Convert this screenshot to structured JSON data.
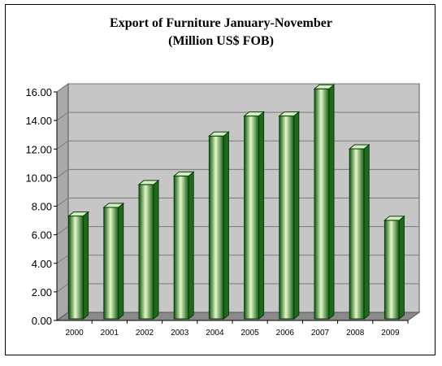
{
  "chart_data": {
    "type": "bar",
    "title": "Export of Furniture January-November",
    "subtitle": "(Million US$ FOB)",
    "categories": [
      "2000",
      "2001",
      "2002",
      "2003",
      "2004",
      "2005",
      "2006",
      "2007",
      "2008",
      "2009"
    ],
    "values": [
      7.0,
      7.6,
      9.2,
      9.8,
      12.6,
      14.0,
      14.0,
      15.9,
      11.7,
      6.7
    ],
    "ylim": [
      0,
      16
    ],
    "yticks": [
      "0.00",
      "2.00",
      "4.00",
      "6.00",
      "8.00",
      "10.00",
      "12.00",
      "14.00",
      "16.00"
    ],
    "xlabel": "",
    "ylabel": "",
    "grid": true,
    "style": "3d-cylinder",
    "colors": {
      "bar_light": "#e6f7c8",
      "bar_mid": "#3f9a2a",
      "bar_dark": "#0d5a10",
      "bar_top": "#d4efc0",
      "bar_side": "#1f6a1a",
      "wall": "#c6c6c6",
      "floor": "#8a8a8a",
      "grid": "#7a7a7a"
    }
  }
}
